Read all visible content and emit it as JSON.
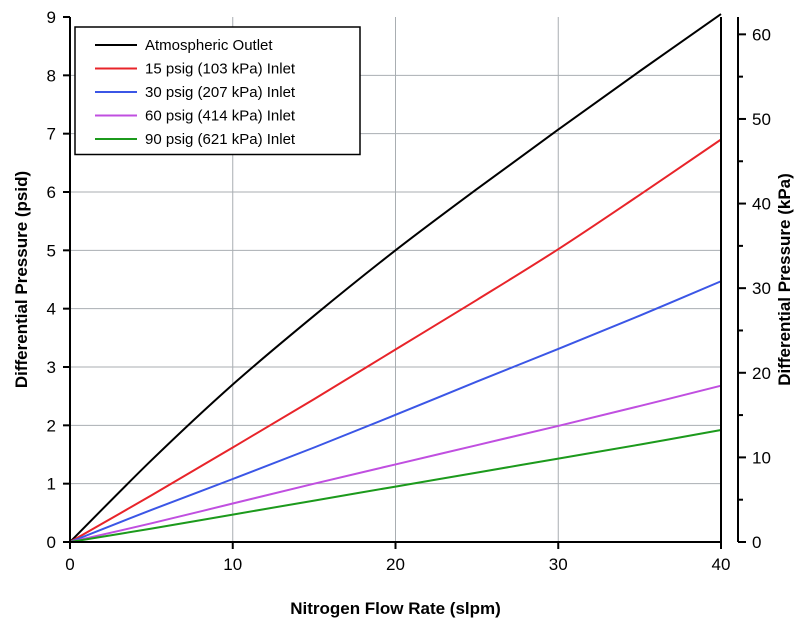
{
  "chart_data": {
    "type": "line",
    "title": "",
    "xlabel": "Nitrogen Flow Rate (slpm)",
    "ylabel": "Differential Pressure (psid)",
    "ylabel_right": "Differential Pressure (kPa)",
    "xlim": [
      0,
      40
    ],
    "ylim": [
      0,
      9
    ],
    "ylim_right": [
      0,
      62.05
    ],
    "x_ticks": [
      "0",
      "10",
      "20",
      "30",
      "40"
    ],
    "y_ticks": [
      "0",
      "1",
      "2",
      "3",
      "4",
      "5",
      "6",
      "7",
      "8",
      "9"
    ],
    "y_right_ticks": [
      "0",
      "10",
      "20",
      "30",
      "40",
      "50",
      "60"
    ],
    "grid": true,
    "legend_position": "top-left",
    "x": [
      0,
      5,
      10,
      15,
      20,
      25,
      30,
      35,
      40
    ],
    "series": [
      {
        "name": "Atmospheric Outlet",
        "color": "#000000",
        "values": [
          0,
          1.4,
          2.7,
          3.88,
          5.0,
          6.05,
          7.07,
          8.07,
          9.05
        ]
      },
      {
        "name": "15 psig (103 kPa) Inlet",
        "color": "#e8242a",
        "values": [
          0,
          0.8,
          1.62,
          2.45,
          3.3,
          4.15,
          5.02,
          5.95,
          6.9
        ]
      },
      {
        "name": "30 psig (207 kPa) Inlet",
        "color": "#3b56e6",
        "values": [
          0,
          0.55,
          1.08,
          1.62,
          2.18,
          2.75,
          3.31,
          3.88,
          4.47
        ]
      },
      {
        "name": "60 psig (414 kPa) Inlet",
        "color": "#c04fe0",
        "values": [
          0,
          0.32,
          0.66,
          1.0,
          1.33,
          1.66,
          1.99,
          2.33,
          2.68
        ]
      },
      {
        "name": "90 psig (621 kPa) Inlet",
        "color": "#1c9a1c",
        "values": [
          0,
          0.23,
          0.47,
          0.71,
          0.95,
          1.19,
          1.43,
          1.67,
          1.92
        ]
      }
    ]
  }
}
